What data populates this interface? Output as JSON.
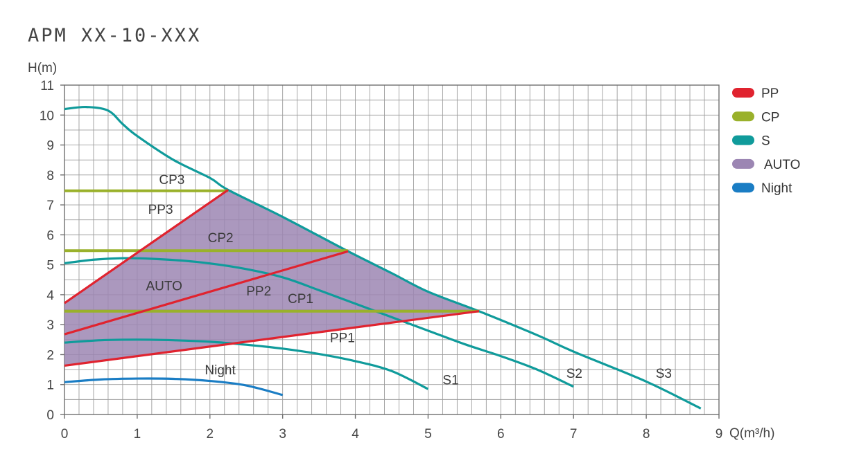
{
  "title": "APM XX-10-XXX",
  "chart_data": {
    "type": "line",
    "title": "APM XX-10-XXX",
    "xlabel": "Q(m³/h)",
    "ylabel": "H(m)",
    "xlim": [
      0,
      9
    ],
    "ylim": [
      0,
      11
    ],
    "x_ticks": [
      "0",
      "1",
      "2",
      "3",
      "4",
      "5",
      "6",
      "7",
      "8",
      "9"
    ],
    "y_ticks": [
      "0",
      "1",
      "2",
      "3",
      "4",
      "5",
      "6",
      "7",
      "8",
      "9",
      "10",
      "11"
    ],
    "grid": true,
    "minor_grid_x": 0.2,
    "minor_grid_y": 0.5,
    "legend_position": "right",
    "legend": [
      {
        "label": "PP",
        "color": "#e0232f"
      },
      {
        "label": "CP",
        "color": "#9ab12b"
      },
      {
        "label": "S",
        "color": "#109b9b"
      },
      {
        "label": "AUTO",
        "color": "#9c86b3"
      },
      {
        "label": "Night",
        "color": "#1a7dc4"
      }
    ],
    "colors": {
      "PP": "#e0232f",
      "CP": "#9ab12b",
      "S": "#109b9b",
      "AUTO": "#9c86b3",
      "Night": "#1a7dc4",
      "grid": "#9c9c9c"
    },
    "series": [
      {
        "name": "S3",
        "group": "S",
        "points": [
          [
            0,
            10.2
          ],
          [
            0.3,
            10.27
          ],
          [
            0.6,
            10.15
          ],
          [
            0.8,
            9.7
          ],
          [
            1,
            9.3
          ],
          [
            1.5,
            8.5
          ],
          [
            2,
            7.9
          ],
          [
            2.25,
            7.5
          ],
          [
            3,
            6.6
          ],
          [
            3.9,
            5.45
          ],
          [
            4.5,
            4.72
          ],
          [
            5,
            4.1
          ],
          [
            5.7,
            3.45
          ],
          [
            6.5,
            2.65
          ],
          [
            7,
            2.1
          ],
          [
            8,
            1.1
          ],
          [
            8.75,
            0.2
          ]
        ]
      },
      {
        "name": "S2",
        "group": "S",
        "points": [
          [
            0,
            5.05
          ],
          [
            0.4,
            5.17
          ],
          [
            0.8,
            5.22
          ],
          [
            1.2,
            5.2
          ],
          [
            1.8,
            5.1
          ],
          [
            2.4,
            4.9
          ],
          [
            3,
            4.58
          ],
          [
            3.5,
            4.15
          ],
          [
            4,
            3.7
          ],
          [
            4.5,
            3.25
          ],
          [
            5,
            2.8
          ],
          [
            5.5,
            2.35
          ],
          [
            6,
            1.95
          ],
          [
            6.5,
            1.5
          ],
          [
            7,
            0.93
          ]
        ]
      },
      {
        "name": "S1",
        "group": "S",
        "points": [
          [
            0,
            2.4
          ],
          [
            0.5,
            2.48
          ],
          [
            1,
            2.5
          ],
          [
            1.5,
            2.48
          ],
          [
            2,
            2.43
          ],
          [
            2.5,
            2.33
          ],
          [
            3,
            2.2
          ],
          [
            3.5,
            2.02
          ],
          [
            4,
            1.78
          ],
          [
            4.5,
            1.45
          ],
          [
            5,
            0.85
          ]
        ]
      },
      {
        "name": "Night",
        "group": "Night",
        "points": [
          [
            0,
            1.08
          ],
          [
            0.5,
            1.17
          ],
          [
            1,
            1.2
          ],
          [
            1.5,
            1.19
          ],
          [
            2,
            1.12
          ],
          [
            2.5,
            0.97
          ],
          [
            3,
            0.65
          ]
        ]
      },
      {
        "name": "PP3",
        "group": "PP",
        "points": [
          [
            0,
            3.72
          ],
          [
            2.25,
            7.5
          ]
        ]
      },
      {
        "name": "PP2",
        "group": "PP",
        "points": [
          [
            0,
            2.68
          ],
          [
            3.9,
            5.45
          ]
        ]
      },
      {
        "name": "PP1",
        "group": "PP",
        "points": [
          [
            0,
            1.63
          ],
          [
            5.7,
            3.45
          ]
        ]
      },
      {
        "name": "CP3",
        "group": "CP",
        "points": [
          [
            0,
            7.47
          ],
          [
            2.25,
            7.47
          ]
        ]
      },
      {
        "name": "CP2",
        "group": "CP",
        "points": [
          [
            0,
            5.47
          ],
          [
            3.9,
            5.47
          ]
        ]
      },
      {
        "name": "CP1",
        "group": "CP",
        "points": [
          [
            0,
            3.45
          ],
          [
            5.7,
            3.45
          ]
        ]
      }
    ],
    "auto_region": {
      "name": "AUTO",
      "points": [
        [
          0,
          1.63
        ],
        [
          5.7,
          3.45
        ],
        [
          5,
          4.1
        ],
        [
          4.5,
          4.72
        ],
        [
          3.9,
          5.45
        ],
        [
          3,
          6.6
        ],
        [
          2.25,
          7.5
        ],
        [
          0,
          3.72
        ]
      ]
    },
    "labels": [
      {
        "text": "CP3",
        "x": 1.3,
        "y": 7.7
      },
      {
        "text": "PP3",
        "x": 1.15,
        "y": 6.7
      },
      {
        "text": "CP2",
        "x": 1.97,
        "y": 5.75
      },
      {
        "text": "AUTO",
        "x": 1.12,
        "y": 4.15
      },
      {
        "text": "PP2",
        "x": 2.5,
        "y": 3.98
      },
      {
        "text": "CP1",
        "x": 3.07,
        "y": 3.72
      },
      {
        "text": "PP1",
        "x": 3.65,
        "y": 2.42
      },
      {
        "text": "Night",
        "x": 1.93,
        "y": 1.34
      },
      {
        "text": "S1",
        "x": 5.2,
        "y": 1.0
      },
      {
        "text": "S2",
        "x": 6.9,
        "y": 1.22
      },
      {
        "text": "S3",
        "x": 8.13,
        "y": 1.22
      }
    ]
  }
}
